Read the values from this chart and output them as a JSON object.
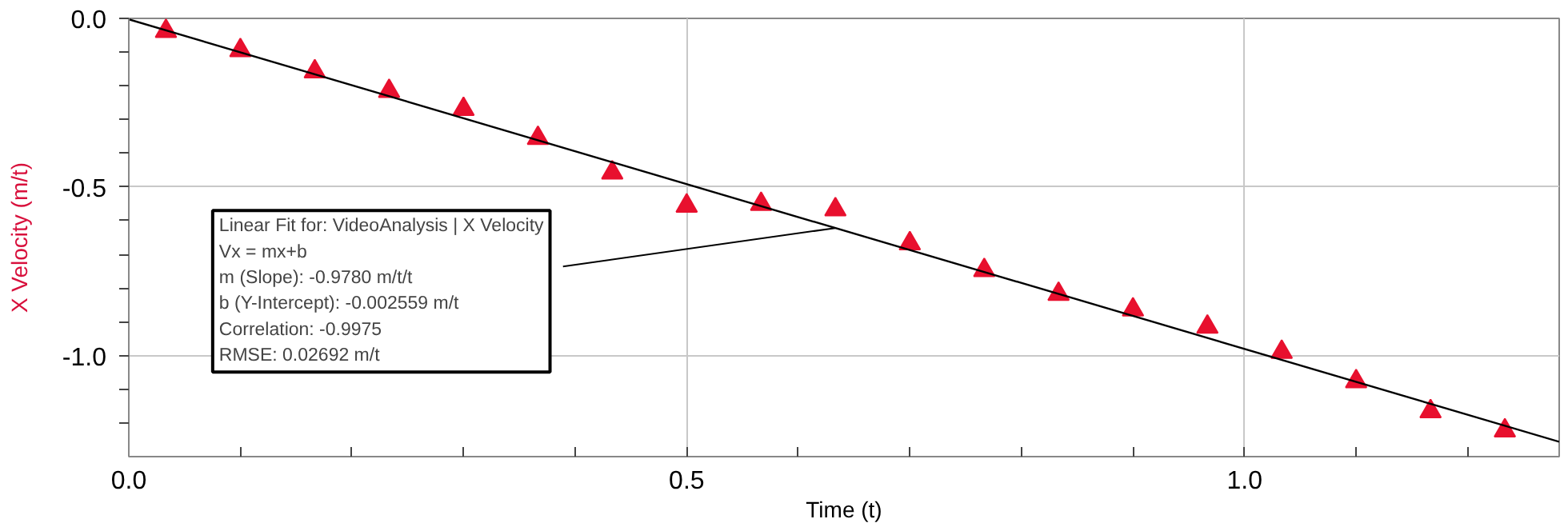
{
  "chart_data": {
    "type": "scatter",
    "xlabel": "Time (t)",
    "ylabel": "X Velocity (m/t)",
    "x": [
      0.0333,
      0.1,
      0.1667,
      0.2333,
      0.3,
      0.3667,
      0.4333,
      0.5,
      0.5667,
      0.6333,
      0.7,
      0.7667,
      0.8333,
      0.9,
      0.9667,
      1.0333,
      1.1,
      1.1667,
      1.2333
    ],
    "series": [
      {
        "color": "#e8102e",
        "marker": "triangle",
        "values": [
          -0.038,
          -0.095,
          -0.158,
          -0.216,
          -0.269,
          -0.355,
          -0.458,
          -0.556,
          -0.551,
          -0.567,
          -0.668,
          -0.747,
          -0.818,
          -0.864,
          -0.915,
          -0.99,
          -1.077,
          -1.166,
          -1.223
        ]
      },
      {
        "type": "line",
        "color": "#000000",
        "marker": "none",
        "line_style": "solid",
        "x": [
          0,
          1.282
        ],
        "values": [
          -0.003,
          -1.256
        ]
      }
    ],
    "annotations": [
      {
        "text": "Linear Fit for: VideoAnalysis | X Velocity\nVx = mx+b\nm (Slope): -0.9780 m/t/t\nb (Y-Intercept): -0.002559 m/t\nCorrelation: -0.9975\nRMSE: 0.02692 m/t",
        "x": 0.633,
        "y": -0.622
      }
    ],
    "xlim": [
      0,
      1.282
    ],
    "ylim": [
      -1.3,
      0
    ],
    "xticks": [
      {
        "value": 0,
        "label": "0.0"
      },
      {
        "value": 0.1,
        "label": null
      },
      {
        "value": 0.2,
        "label": null
      },
      {
        "value": 0.3,
        "label": null
      },
      {
        "value": 0.4,
        "label": null
      },
      {
        "value": 0.5,
        "label": "0.5"
      },
      {
        "value": 0.6,
        "label": null
      },
      {
        "value": 0.7,
        "label": null
      },
      {
        "value": 0.8,
        "label": null
      },
      {
        "value": 0.9,
        "label": null
      },
      {
        "value": 1.0,
        "label": "1.0"
      },
      {
        "value": 1.1,
        "label": null
      },
      {
        "value": 1.2,
        "label": null
      }
    ],
    "yticks": [
      {
        "value": 0,
        "label": "0.0"
      },
      {
        "value": -0.1,
        "label": null
      },
      {
        "value": -0.2,
        "label": null
      },
      {
        "value": -0.3,
        "label": null
      },
      {
        "value": -0.4,
        "label": null
      },
      {
        "value": -0.5,
        "label": "-0.5"
      },
      {
        "value": -0.6,
        "label": null
      },
      {
        "value": -0.7,
        "label": null
      },
      {
        "value": -0.8,
        "label": null
      },
      {
        "value": -0.9,
        "label": null
      },
      {
        "value": -1.0,
        "label": "-1.0"
      },
      {
        "value": -1.1,
        "label": null
      },
      {
        "value": -1.2,
        "label": null
      }
    ],
    "grid": true
  }
}
